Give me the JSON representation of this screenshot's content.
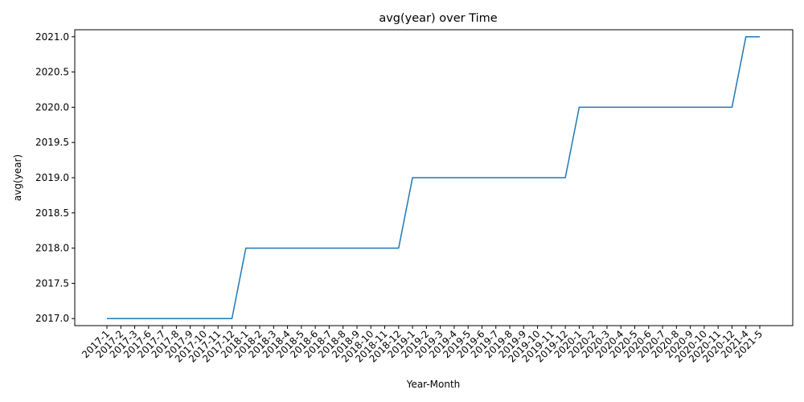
{
  "chart_data": {
    "type": "line",
    "title": "avg(year) over Time",
    "xlabel": "Year-Month",
    "ylabel": "avg(year)",
    "categories": [
      "2017-1",
      "2017-2",
      "2017-3",
      "2017-6",
      "2017-7",
      "2017-8",
      "2017-9",
      "2017-10",
      "2017-11",
      "2017-12",
      "2018-1",
      "2018-2",
      "2018-3",
      "2018-4",
      "2018-5",
      "2018-6",
      "2018-7",
      "2018-8",
      "2018-9",
      "2018-10",
      "2018-11",
      "2018-12",
      "2019-1",
      "2019-2",
      "2019-3",
      "2019-4",
      "2019-5",
      "2019-6",
      "2019-7",
      "2019-8",
      "2019-9",
      "2019-10",
      "2019-11",
      "2019-12",
      "2020-1",
      "2020-2",
      "2020-3",
      "2020-4",
      "2020-5",
      "2020-6",
      "2020-7",
      "2020-8",
      "2020-9",
      "2020-10",
      "2020-11",
      "2020-12",
      "2021-4",
      "2021-5"
    ],
    "series": [
      {
        "values": [
          2017,
          2017,
          2017,
          2017,
          2017,
          2017,
          2017,
          2017,
          2017,
          2017,
          2018,
          2018,
          2018,
          2018,
          2018,
          2018,
          2018,
          2018,
          2018,
          2018,
          2018,
          2018,
          2019,
          2019,
          2019,
          2019,
          2019,
          2019,
          2019,
          2019,
          2019,
          2019,
          2019,
          2019,
          2020,
          2020,
          2020,
          2020,
          2020,
          2020,
          2020,
          2020,
          2020,
          2020,
          2020,
          2020,
          2021,
          2021
        ],
        "color": "#1f77b4"
      }
    ],
    "ylim": [
      2016.9,
      2021.1
    ],
    "yticks": [
      "2017.0",
      "2017.5",
      "2018.0",
      "2018.5",
      "2019.0",
      "2019.5",
      "2020.0",
      "2020.5",
      "2021.0"
    ],
    "grid": false,
    "legend": "none"
  }
}
